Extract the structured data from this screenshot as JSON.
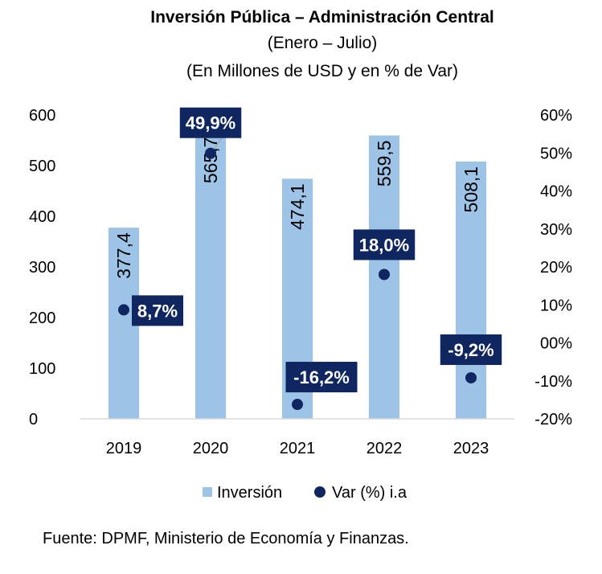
{
  "chart_data": {
    "type": "bar",
    "title": "Inversión Pública – Administración Central",
    "subtitle_1": "(Enero – Julio)",
    "subtitle_2": "(En Millones de USD y en % de Var)",
    "categories": [
      "2019",
      "2020",
      "2021",
      "2022",
      "2023"
    ],
    "series": [
      {
        "name": "Inversión",
        "type": "bar",
        "axis": "left",
        "color": "#9DC3E6",
        "values": [
          377.4,
          565.7,
          474.1,
          559.5,
          508.1
        ],
        "labels": [
          "377,4",
          "565,7",
          "474,1",
          "559,5",
          "508,1"
        ]
      },
      {
        "name": "Var (%) i.a",
        "type": "scatter",
        "axis": "right",
        "color": "#0F2660",
        "values": [
          8.7,
          49.9,
          -16.2,
          18.0,
          -9.2
        ],
        "labels": [
          "8,7%",
          "49,9%",
          "-16,2%",
          "18,0%",
          "-9,2%"
        ]
      }
    ],
    "y_left": {
      "ylim": [
        0,
        600
      ],
      "ticks": [
        0,
        100,
        200,
        300,
        400,
        500,
        600
      ],
      "tick_labels": [
        "0",
        "100",
        "200",
        "300",
        "400",
        "500",
        "600"
      ]
    },
    "y_right": {
      "ylim": [
        -20,
        60
      ],
      "ticks": [
        -20,
        -10,
        0,
        10,
        20,
        30,
        40,
        50,
        60
      ],
      "tick_labels": [
        "-20%",
        "-10%",
        "00%",
        "10%",
        "20%",
        "30%",
        "40%",
        "50%",
        "60%"
      ]
    },
    "legend": {
      "position": "bottom",
      "items": [
        "Inversión",
        "Var (%) i.a"
      ]
    },
    "grid": false
  },
  "source_note": "Fuente: DPMF, Ministerio de Economía y Finanzas."
}
